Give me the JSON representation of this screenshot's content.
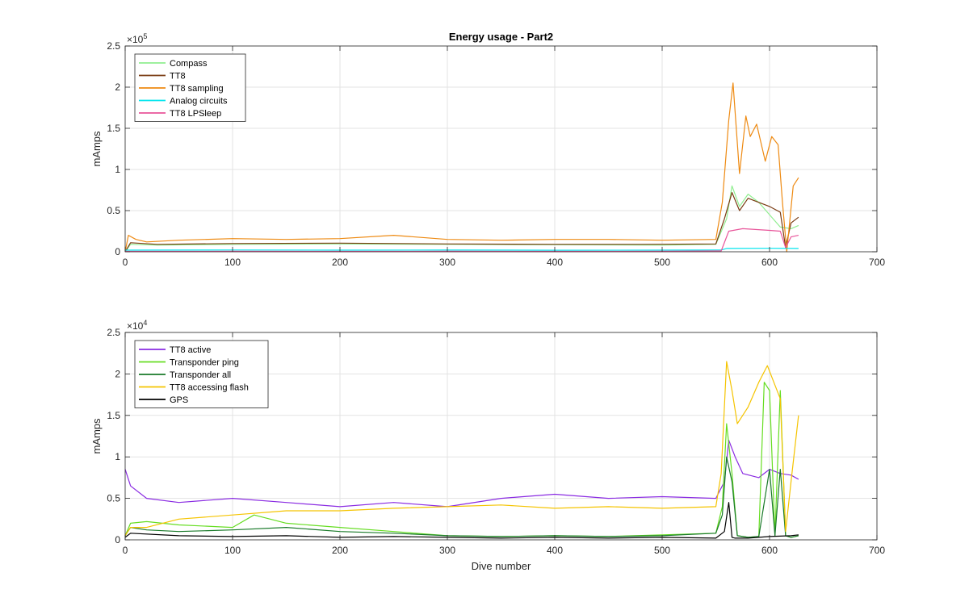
{
  "chart_data": [
    {
      "type": "line",
      "title": "Energy usage - Part2",
      "xlabel": "",
      "ylabel": "mAmps",
      "xlim": [
        0,
        700
      ],
      "ylim": [
        0,
        250000
      ],
      "xticks": [
        0,
        100,
        200,
        300,
        400,
        500,
        600,
        700
      ],
      "xtick_labels": [
        "0",
        "100",
        "200",
        "300",
        "400",
        "500",
        "600",
        "700"
      ],
      "yticks": [
        0,
        50000,
        100000,
        150000,
        200000,
        250000
      ],
      "ytick_labels": [
        "0",
        "0.5",
        "1",
        "1.5",
        "2",
        "2.5"
      ],
      "exponent": {
        "base": "×10",
        "power": "5"
      },
      "grid": true,
      "legend_position": "top-left",
      "series": [
        {
          "name": "Compass",
          "color": "#90ee90",
          "x": [
            0,
            5,
            30,
            100,
            200,
            300,
            400,
            500,
            550,
            560,
            565,
            572,
            580,
            590,
            600,
            610,
            620,
            627
          ],
          "y": [
            0,
            9000,
            8000,
            9000,
            9500,
            9000,
            8500,
            8000,
            9000,
            40000,
            80000,
            55000,
            70000,
            60000,
            45000,
            30000,
            28000,
            32000
          ]
        },
        {
          "name": "TT8",
          "color": "#7a3b12",
          "x": [
            0,
            5,
            30,
            100,
            200,
            300,
            400,
            480,
            550,
            558,
            565,
            572,
            580,
            590,
            600,
            610,
            615,
            620,
            627
          ],
          "y": [
            0,
            11000,
            9000,
            10000,
            10500,
            9500,
            9000,
            9000,
            9500,
            40000,
            72000,
            50000,
            65000,
            60000,
            55000,
            48000,
            5000,
            35000,
            42000
          ]
        },
        {
          "name": "TT8 sampling",
          "color": "#ee8a12",
          "x": [
            0,
            3,
            10,
            20,
            50,
            100,
            150,
            200,
            250,
            300,
            350,
            400,
            450,
            500,
            550,
            556,
            562,
            566,
            572,
            578,
            582,
            588,
            596,
            602,
            608,
            612,
            616,
            622,
            627
          ],
          "y": [
            0,
            20000,
            15000,
            12000,
            14000,
            16000,
            15000,
            16000,
            20000,
            15000,
            14000,
            15000,
            15000,
            14000,
            15000,
            60000,
            160000,
            205000,
            95000,
            165000,
            140000,
            155000,
            110000,
            140000,
            130000,
            60000,
            0,
            80000,
            90000
          ]
        },
        {
          "name": "Analog circuits",
          "color": "#00e5ee",
          "x": [
            0,
            100,
            200,
            300,
            400,
            500,
            555,
            560,
            600,
            627
          ],
          "y": [
            2000,
            2200,
            2000,
            2100,
            1900,
            2000,
            2200,
            4000,
            4200,
            4000
          ]
        },
        {
          "name": "TT8 LPSleep",
          "color": "#e8559a",
          "x": [
            0,
            100,
            200,
            300,
            400,
            500,
            555,
            562,
            575,
            600,
            610,
            615,
            620,
            627
          ],
          "y": [
            500,
            600,
            500,
            600,
            500,
            600,
            1000,
            25000,
            28000,
            26000,
            25000,
            5000,
            18000,
            20000
          ]
        }
      ]
    },
    {
      "type": "line",
      "title": "",
      "xlabel": "Dive number",
      "ylabel": "mAmps",
      "xlim": [
        0,
        700
      ],
      "ylim": [
        0,
        25000
      ],
      "xticks": [
        0,
        100,
        200,
        300,
        400,
        500,
        600,
        700
      ],
      "xtick_labels": [
        "0",
        "100",
        "200",
        "300",
        "400",
        "500",
        "600",
        "700"
      ],
      "yticks": [
        0,
        5000,
        10000,
        15000,
        20000,
        25000
      ],
      "ytick_labels": [
        "0",
        "0.5",
        "1",
        "1.5",
        "2",
        "2.5"
      ],
      "exponent": {
        "base": "×10",
        "power": "4"
      },
      "grid": true,
      "legend_position": "top-left",
      "series": [
        {
          "name": "TT8 active",
          "color": "#8a2be2",
          "x": [
            0,
            5,
            20,
            50,
            100,
            150,
            200,
            250,
            300,
            350,
            400,
            450,
            500,
            550,
            558,
            562,
            568,
            575,
            590,
            600,
            610,
            620,
            627
          ],
          "y": [
            8500,
            6500,
            5000,
            4500,
            5000,
            4500,
            4000,
            4500,
            4000,
            5000,
            5500,
            5000,
            5200,
            5000,
            7000,
            12000,
            10000,
            8000,
            7500,
            8500,
            8000,
            7800,
            7300
          ]
        },
        {
          "name": "Transponder ping",
          "color": "#66dd22",
          "x": [
            0,
            5,
            20,
            50,
            100,
            120,
            150,
            200,
            250,
            300,
            350,
            400,
            450,
            500,
            550,
            556,
            560,
            565,
            570,
            580,
            590,
            595,
            600,
            605,
            610,
            615,
            620,
            627
          ],
          "y": [
            500,
            2000,
            2200,
            1800,
            1500,
            3000,
            2000,
            1500,
            1000,
            500,
            400,
            500,
            400,
            600,
            800,
            4000,
            14000,
            8000,
            500,
            300,
            400,
            19000,
            18000,
            500,
            18000,
            500,
            300,
            500
          ]
        },
        {
          "name": "Transponder all",
          "color": "#1a7a2a",
          "x": [
            0,
            5,
            20,
            50,
            100,
            150,
            200,
            250,
            300,
            350,
            400,
            450,
            500,
            550,
            556,
            560,
            565,
            570,
            580,
            590,
            600,
            605,
            610,
            615,
            620,
            627
          ],
          "y": [
            500,
            1500,
            1200,
            1000,
            1200,
            1500,
            1000,
            800,
            500,
            400,
            500,
            400,
            500,
            800,
            3000,
            10000,
            7000,
            500,
            300,
            400,
            8500,
            500,
            8500,
            500,
            300,
            500
          ]
        },
        {
          "name": "TT8 accessing flash",
          "color": "#f5c400",
          "x": [
            0,
            5,
            20,
            50,
            100,
            150,
            200,
            250,
            300,
            350,
            400,
            450,
            500,
            550,
            555,
            560,
            565,
            570,
            580,
            590,
            598,
            604,
            610,
            615,
            620,
            627
          ],
          "y": [
            500,
            1500,
            1500,
            2500,
            3000,
            3500,
            3500,
            3800,
            4000,
            4200,
            3800,
            4000,
            3800,
            4000,
            8000,
            21500,
            18000,
            14000,
            16000,
            19000,
            21000,
            19000,
            17000,
            1000,
            7000,
            15000
          ]
        },
        {
          "name": "GPS",
          "color": "#000000",
          "x": [
            0,
            5,
            50,
            100,
            150,
            200,
            250,
            300,
            350,
            400,
            450,
            500,
            550,
            558,
            562,
            565,
            568,
            580,
            600,
            620,
            627
          ],
          "y": [
            300,
            800,
            500,
            400,
            500,
            300,
            400,
            300,
            200,
            300,
            200,
            300,
            200,
            1000,
            4500,
            300,
            200,
            200,
            400,
            500,
            600
          ]
        }
      ]
    }
  ]
}
